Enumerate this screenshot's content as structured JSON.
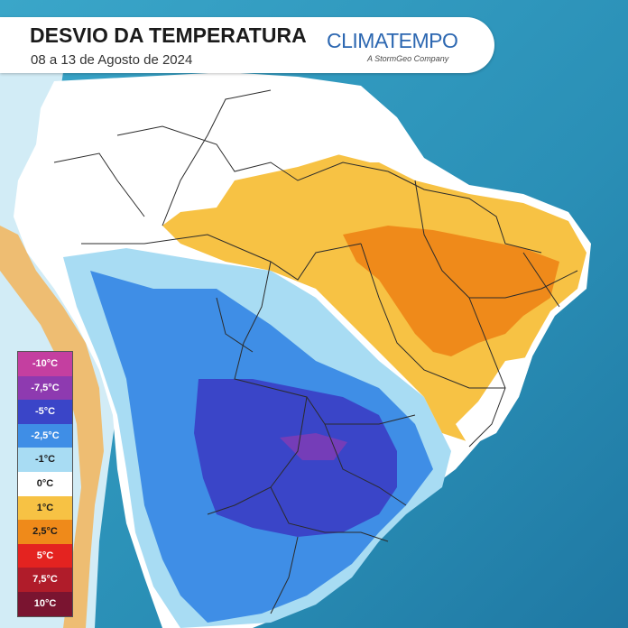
{
  "header": {
    "title": "DESVIO DA TEMPERATURA",
    "subtitle": "08 a 13 de Agosto de 2024",
    "brand": "CLIMATEMPO",
    "brand_tagline": "A StormGeo Company"
  },
  "legend": {
    "items": [
      {
        "label": "-10°C",
        "color": "#c43fa0",
        "text_color": "#ffffff"
      },
      {
        "label": "-7,5°C",
        "color": "#8e3ab0",
        "text_color": "#ffffff"
      },
      {
        "label": "-5°C",
        "color": "#3a45c8",
        "text_color": "#ffffff"
      },
      {
        "label": "-2,5°C",
        "color": "#3f8ee6",
        "text_color": "#ffffff"
      },
      {
        "label": "-1°C",
        "color": "#a8dcf3",
        "text_color": "#1b1b1b"
      },
      {
        "label": "0°C",
        "color": "#ffffff",
        "text_color": "#1b1b1b"
      },
      {
        "label": "1°C",
        "color": "#f7c244",
        "text_color": "#1b1b1b"
      },
      {
        "label": "2,5°C",
        "color": "#ef8a1a",
        "text_color": "#1b1b1b"
      },
      {
        "label": "5°C",
        "color": "#e42320",
        "text_color": "#ffffff"
      },
      {
        "label": "7,5°C",
        "color": "#b01c2a",
        "text_color": "#ffffff"
      },
      {
        "label": "10°C",
        "color": "#7a1430",
        "text_color": "#ffffff"
      }
    ]
  },
  "colors": {
    "ocean": "#2a8fb6",
    "land_neutral": "#ffffff",
    "cold_light": "#a8dcf3",
    "cold_medium": "#3f8ee6",
    "cold_strong": "#3a45c8",
    "warm_light": "#f7c244",
    "warm_medium": "#ef8a1a",
    "borders": "#2b2b2b"
  }
}
